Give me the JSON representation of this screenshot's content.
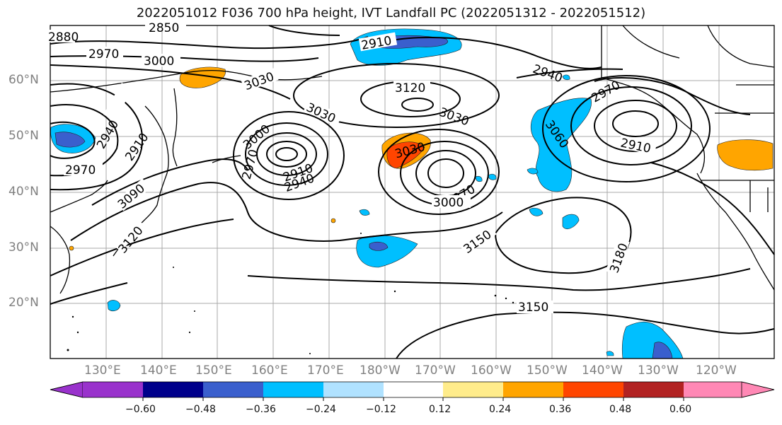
{
  "title": "2022051012 F036 700 hPa height, IVT Landfall PC (2022051312 - 2022051512)",
  "lat_labels": [
    "60°N",
    "50°N",
    "40°N",
    "30°N",
    "20°N"
  ],
  "lon_labels": [
    "130°E",
    "140°E",
    "150°E",
    "160°E",
    "170°E",
    "180°W",
    "170°W",
    "160°W",
    "150°W",
    "140°W",
    "130°W",
    "120°W"
  ],
  "contour_labels": [
    "2850",
    "2880",
    "2970",
    "3000",
    "3030",
    "2910",
    "2940",
    "2910",
    "2970",
    "3090",
    "3120",
    "3000",
    "2970",
    "2940",
    "2910",
    "3030",
    "3120",
    "3030",
    "3030",
    "2970",
    "3000",
    "3150",
    "3180",
    "3150",
    "3060",
    "2940",
    "2970",
    "2910"
  ],
  "colorbar": {
    "ticks": [
      "−0.60",
      "−0.48",
      "−0.36",
      "−0.24",
      "−0.12",
      "0.12",
      "0.24",
      "0.36",
      "0.48",
      "0.60"
    ],
    "colors": [
      "#9932cc",
      "#00008b",
      "#3a5fcd",
      "#00bfff",
      "#b0e2ff",
      "#ffffff",
      "#ffec8b",
      "#ffa500",
      "#ff4500",
      "#b22222",
      "#ff88b5"
    ]
  },
  "palette": {
    "contour": "#000000",
    "grid": "#a0a0a0",
    "coast": "#000000"
  }
}
